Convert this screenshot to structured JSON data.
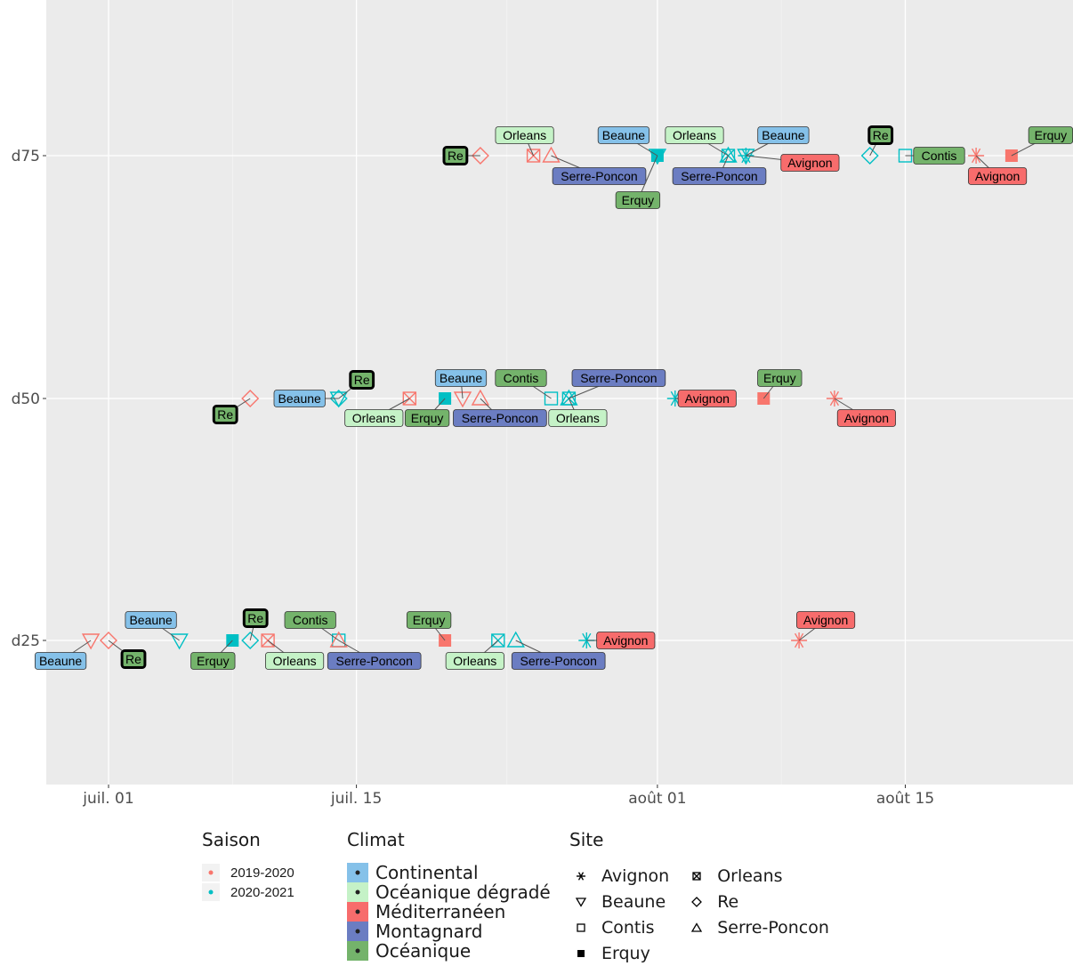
{
  "chart_data": {
    "type": "scatter",
    "title": "",
    "xlabel": "",
    "ylabel": "",
    "x_axis": {
      "type": "date",
      "ticks": [
        {
          "date": "2021-07-01",
          "label": "juil. 01"
        },
        {
          "date": "2021-07-15",
          "label": "juil. 15"
        },
        {
          "date": "2021-08-01",
          "label": "août 01"
        },
        {
          "date": "2021-08-15",
          "label": "août 15"
        }
      ],
      "range": [
        "2021-06-27",
        "2021-08-24"
      ]
    },
    "y_axis": {
      "type": "categorical",
      "categories": [
        "d25",
        "d50",
        "d75"
      ]
    },
    "grid": true,
    "legend_placement": "bottom",
    "legends": {
      "saison": {
        "title": "Saison",
        "entries": [
          {
            "name": "2019-2020",
            "color": "#F8766D"
          },
          {
            "name": "2020-2021",
            "color": "#00BFC4"
          }
        ]
      },
      "climat": {
        "title": "Climat",
        "entries": [
          {
            "name": "Continental",
            "color": "#85C1E9"
          },
          {
            "name": "Océanique dégradé",
            "color": "#C5F2C7"
          },
          {
            "name": "Méditerranéen",
            "color": "#F76C6C"
          },
          {
            "name": "Montagnard",
            "color": "#6B7DC2"
          },
          {
            "name": "Océanique",
            "color": "#74B36B"
          }
        ]
      },
      "site": {
        "title": "Site",
        "entries": [
          {
            "name": "Avignon",
            "shape": "asterisk"
          },
          {
            "name": "Beaune",
            "shape": "triangle-down"
          },
          {
            "name": "Contis",
            "shape": "square"
          },
          {
            "name": "Erquy",
            "shape": "square-filled"
          },
          {
            "name": "Orleans",
            "shape": "square-cross"
          },
          {
            "name": "Re",
            "shape": "diamond"
          },
          {
            "name": "Serre-Poncon",
            "shape": "triangle-up"
          }
        ]
      }
    },
    "points": [
      {
        "date": "2021-06-30",
        "y": "d25",
        "site": "Beaune",
        "saison": "2019-2020",
        "label": "Beaune",
        "climat": "Continental"
      },
      {
        "date": "2021-07-01",
        "y": "d25",
        "site": "Re",
        "saison": "2019-2020",
        "label": "Re",
        "climat": "Océanique"
      },
      {
        "date": "2021-07-05",
        "y": "d25",
        "site": "Beaune",
        "saison": "2020-2021",
        "label": "Beaune",
        "climat": "Continental"
      },
      {
        "date": "2021-07-08",
        "y": "d25",
        "site": "Erquy",
        "saison": "2020-2021",
        "label": "Erquy",
        "climat": "Océanique"
      },
      {
        "date": "2021-07-09",
        "y": "d25",
        "site": "Re",
        "saison": "2020-2021",
        "label": "Re",
        "climat": "Océanique"
      },
      {
        "date": "2021-07-10",
        "y": "d25",
        "site": "Orleans",
        "saison": "2019-2020",
        "label": "Orleans",
        "climat": "Océanique dégradé"
      },
      {
        "date": "2021-07-14",
        "y": "d25",
        "site": "Contis",
        "saison": "2020-2021",
        "label": "Contis",
        "climat": "Océanique"
      },
      {
        "date": "2021-07-14",
        "y": "d25",
        "site": "Serre-Poncon",
        "saison": "2019-2020",
        "label": "Serre-Poncon",
        "climat": "Montagnard"
      },
      {
        "date": "2021-07-20",
        "y": "d25",
        "site": "Erquy",
        "saison": "2019-2020",
        "label": "Erquy",
        "climat": "Océanique"
      },
      {
        "date": "2021-07-23",
        "y": "d25",
        "site": "Orleans",
        "saison": "2020-2021",
        "label": "Orleans",
        "climat": "Océanique dégradé"
      },
      {
        "date": "2021-07-24",
        "y": "d25",
        "site": "Serre-Poncon",
        "saison": "2020-2021",
        "label": "Serre-Poncon",
        "climat": "Montagnard"
      },
      {
        "date": "2021-07-28",
        "y": "d25",
        "site": "Avignon",
        "saison": "2020-2021",
        "label": "Avignon",
        "climat": "Méditerranéen"
      },
      {
        "date": "2021-08-09",
        "y": "d25",
        "site": "Avignon",
        "saison": "2019-2020",
        "label": "Avignon",
        "climat": "Méditerranéen"
      },
      {
        "date": "2021-07-09",
        "y": "d50",
        "site": "Re",
        "saison": "2019-2020",
        "label": "Re",
        "climat": "Océanique"
      },
      {
        "date": "2021-07-14",
        "y": "d50",
        "site": "Beaune",
        "saison": "2020-2021",
        "label": "Beaune",
        "climat": "Continental"
      },
      {
        "date": "2021-07-14",
        "y": "d50",
        "site": "Re",
        "saison": "2020-2021",
        "label": "Re",
        "climat": "Océanique"
      },
      {
        "date": "2021-07-18",
        "y": "d50",
        "site": "Orleans",
        "saison": "2019-2020",
        "label": "Orleans",
        "climat": "Océanique dégradé"
      },
      {
        "date": "2021-07-20",
        "y": "d50",
        "site": "Erquy",
        "saison": "2020-2021",
        "label": "Erquy",
        "climat": "Océanique"
      },
      {
        "date": "2021-07-21",
        "y": "d50",
        "site": "Beaune",
        "saison": "2019-2020",
        "label": "Beaune",
        "climat": "Continental"
      },
      {
        "date": "2021-07-22",
        "y": "d50",
        "site": "Serre-Poncon",
        "saison": "2019-2020",
        "label": "Serre-Poncon",
        "climat": "Montagnard"
      },
      {
        "date": "2021-07-26",
        "y": "d50",
        "site": "Contis",
        "saison": "2020-2021",
        "label": "Contis",
        "climat": "Océanique"
      },
      {
        "date": "2021-07-27",
        "y": "d50",
        "site": "Serre-Poncon",
        "saison": "2020-2021",
        "label": "Serre-Poncon",
        "climat": "Montagnard"
      },
      {
        "date": "2021-07-27",
        "y": "d50",
        "site": "Orleans",
        "saison": "2020-2021",
        "label": "Orleans",
        "climat": "Océanique dégradé"
      },
      {
        "date": "2021-08-02",
        "y": "d50",
        "site": "Avignon",
        "saison": "2020-2021",
        "label": "Avignon",
        "climat": "Méditerranéen"
      },
      {
        "date": "2021-08-07",
        "y": "d50",
        "site": "Erquy",
        "saison": "2019-2020",
        "label": "Erquy",
        "climat": "Océanique"
      },
      {
        "date": "2021-08-11",
        "y": "d50",
        "site": "Avignon",
        "saison": "2019-2020",
        "label": "Avignon",
        "climat": "Méditerranéen"
      },
      {
        "date": "2021-07-22",
        "y": "d75",
        "site": "Re",
        "saison": "2019-2020",
        "label": "Re",
        "climat": "Océanique"
      },
      {
        "date": "2021-07-25",
        "y": "d75",
        "site": "Orleans",
        "saison": "2019-2020",
        "label": "Orleans",
        "climat": "Océanique dégradé"
      },
      {
        "date": "2021-07-26",
        "y": "d75",
        "site": "Serre-Poncon",
        "saison": "2019-2020",
        "label": "Serre-Poncon",
        "climat": "Montagnard"
      },
      {
        "date": "2021-08-01",
        "y": "d75",
        "site": "Beaune",
        "saison": "2020-2021",
        "label": "Beaune",
        "climat": "Continental"
      },
      {
        "date": "2021-08-01",
        "y": "d75",
        "site": "Erquy",
        "saison": "2020-2021",
        "label": "Erquy",
        "climat": "Océanique"
      },
      {
        "date": "2021-08-05",
        "y": "d75",
        "site": "Orleans",
        "saison": "2020-2021",
        "label": "Orleans",
        "climat": "Océanique dégradé"
      },
      {
        "date": "2021-08-05",
        "y": "d75",
        "site": "Serre-Poncon",
        "saison": "2020-2021",
        "label": "Serre-Poncon",
        "climat": "Montagnard"
      },
      {
        "date": "2021-08-06",
        "y": "d75",
        "site": "Beaune",
        "saison": "2020-2021",
        "label": "Beaune",
        "climat": "Continental"
      },
      {
        "date": "2021-08-06",
        "y": "d75",
        "site": "Avignon",
        "saison": "2020-2021",
        "label": "Avignon",
        "climat": "Méditerranéen"
      },
      {
        "date": "2021-08-13",
        "y": "d75",
        "site": "Re",
        "saison": "2020-2021",
        "label": "Re",
        "climat": "Océanique"
      },
      {
        "date": "2021-08-15",
        "y": "d75",
        "site": "Contis",
        "saison": "2020-2021",
        "label": "Contis",
        "climat": "Océanique"
      },
      {
        "date": "2021-08-19",
        "y": "d75",
        "site": "Avignon",
        "saison": "2019-2020",
        "label": "Avignon",
        "climat": "Méditerranéen"
      },
      {
        "date": "2021-08-21",
        "y": "d75",
        "site": "Erquy",
        "saison": "2019-2020",
        "label": "Erquy",
        "climat": "Océanique"
      }
    ]
  }
}
